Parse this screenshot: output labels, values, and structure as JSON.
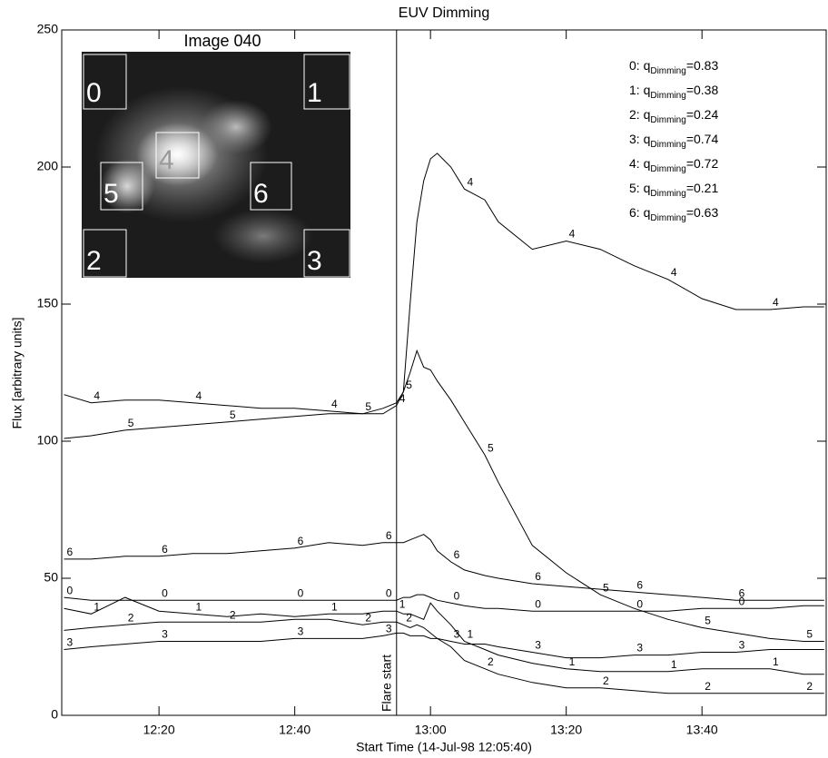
{
  "chart_data": {
    "type": "line",
    "title": "EUV Dimming",
    "xlabel": "Start Time (14-Jul-98 12:05:40)",
    "ylabel": "Flux [arbitrary units]",
    "x": [
      726,
      730,
      735,
      740,
      745,
      750,
      755,
      760,
      765,
      770,
      773,
      775,
      776,
      777,
      778,
      779,
      780,
      781,
      783,
      785,
      788,
      790,
      795,
      800,
      805,
      810,
      815,
      820,
      825,
      830,
      835,
      838
    ],
    "xlim": [
      725.67,
      838.3
    ],
    "xticks": [
      {
        "value": 740,
        "label": "12:20"
      },
      {
        "value": 760,
        "label": "12:40"
      },
      {
        "value": 780,
        "label": "13:00"
      },
      {
        "value": 800,
        "label": "13:20"
      },
      {
        "value": 820,
        "label": "13:40"
      }
    ],
    "ylim": [
      0,
      250
    ],
    "yticks": [
      0,
      50,
      100,
      150,
      200,
      250
    ],
    "color": "#000000",
    "series": [
      {
        "name": "0",
        "values": [
          43,
          42,
          42,
          42,
          42,
          42,
          42,
          42,
          42,
          42,
          42,
          42,
          43,
          43,
          44,
          44,
          43,
          42,
          41,
          40,
          39,
          39,
          38,
          38,
          38,
          38,
          38,
          39,
          39,
          39,
          40,
          40
        ]
      },
      {
        "name": "1",
        "values": [
          39,
          37,
          43,
          38,
          37,
          36,
          37,
          36,
          37,
          37,
          38,
          38,
          37,
          37,
          36,
          35,
          41,
          38,
          33,
          27,
          24,
          22,
          19,
          17,
          16,
          16,
          16,
          17,
          17,
          17,
          15,
          15
        ]
      },
      {
        "name": "2",
        "values": [
          31,
          32,
          33,
          34,
          34,
          34,
          34,
          35,
          35,
          33,
          34,
          34,
          33,
          32,
          33,
          32,
          30,
          28,
          25,
          20,
          17,
          15,
          12,
          10,
          10,
          9,
          8,
          8,
          8,
          8,
          8,
          8
        ]
      },
      {
        "name": "3",
        "values": [
          24,
          25,
          26,
          27,
          27,
          27,
          27,
          28,
          28,
          28,
          29,
          30,
          30,
          29,
          29,
          29,
          28,
          28,
          27,
          26,
          26,
          25,
          23,
          21,
          21,
          22,
          22,
          23,
          23,
          24,
          24,
          24
        ]
      },
      {
        "name": "4",
        "values": [
          117,
          114,
          115,
          115,
          114,
          113,
          112,
          112,
          111,
          110,
          110,
          113,
          118,
          150,
          180,
          195,
          203,
          205,
          200,
          192,
          188,
          180,
          170,
          173,
          170,
          164,
          159,
          152,
          148,
          148,
          149,
          149
        ]
      },
      {
        "name": "5",
        "values": [
          101,
          102,
          104,
          105,
          106,
          107,
          108,
          109,
          110,
          110,
          112,
          114,
          118,
          125,
          133,
          127,
          126,
          122,
          115,
          107,
          95,
          85,
          62,
          52,
          44,
          39,
          35,
          32,
          30,
          28,
          27,
          27
        ]
      },
      {
        "name": "6",
        "values": [
          57,
          57,
          58,
          58,
          59,
          59,
          60,
          61,
          63,
          62,
          63,
          63,
          63,
          64,
          65,
          66,
          64,
          60,
          56,
          53,
          51,
          50,
          48,
          47,
          46,
          45,
          44,
          43,
          42,
          42,
          42,
          42
        ]
      }
    ],
    "flare": {
      "x": 775,
      "label": "Flare start"
    },
    "legend": [
      {
        "prefix": "0: q",
        "sub": "Dimming",
        "suffix": "=0.83"
      },
      {
        "prefix": "1: q",
        "sub": "Dimming",
        "suffix": "=0.38"
      },
      {
        "prefix": "2: q",
        "sub": "Dimming",
        "suffix": "=0.24"
      },
      {
        "prefix": "3: q",
        "sub": "Dimming",
        "suffix": "=0.74"
      },
      {
        "prefix": "4: q",
        "sub": "Dimming",
        "suffix": "=0.72"
      },
      {
        "prefix": "5: q",
        "sub": "Dimming",
        "suffix": "=0.21"
      },
      {
        "prefix": "6: q",
        "sub": "Dimming",
        "suffix": "=0.63"
      }
    ],
    "inset": {
      "title": "Image 040",
      "boxes": [
        {
          "label": "0"
        },
        {
          "label": "1"
        },
        {
          "label": "2"
        },
        {
          "label": "3"
        },
        {
          "label": "4"
        },
        {
          "label": "5"
        },
        {
          "label": "6"
        }
      ]
    }
  }
}
